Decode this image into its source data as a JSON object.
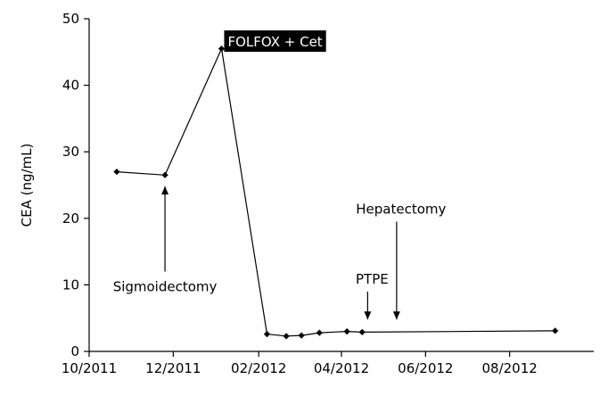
{
  "chart_data": {
    "type": "line",
    "title": "",
    "xlabel": "",
    "ylabel": "CEA (ng/mL)",
    "ylim": [
      0,
      50
    ],
    "yticks": [
      0,
      10,
      20,
      30,
      40,
      50
    ],
    "xlim": [
      "2011-10-01",
      "2012-10-01"
    ],
    "xticks": [
      {
        "date": "2011-10-01",
        "label": "10/2011"
      },
      {
        "date": "2011-12-01",
        "label": "12/2011"
      },
      {
        "date": "2012-02-01",
        "label": "02/2012"
      },
      {
        "date": "2012-04-01",
        "label": "04/2012"
      },
      {
        "date": "2012-06-01",
        "label": "06/2012"
      },
      {
        "date": "2012-08-01",
        "label": "08/2012"
      }
    ],
    "grid": false,
    "series": [
      {
        "marker": "diamond",
        "color": "#000000",
        "points": [
          {
            "x": "2011-10-21",
            "y": 27.0
          },
          {
            "x": "2011-11-25",
            "y": 26.5
          },
          {
            "x": "2012-01-05",
            "y": 45.5
          },
          {
            "x": "2012-02-07",
            "y": 2.6
          },
          {
            "x": "2012-02-21",
            "y": 2.3
          },
          {
            "x": "2012-03-03",
            "y": 2.4
          },
          {
            "x": "2012-03-16",
            "y": 2.8
          },
          {
            "x": "2012-04-05",
            "y": 3.0
          },
          {
            "x": "2012-04-16",
            "y": 2.9
          },
          {
            "x": "2012-09-03",
            "y": 3.1
          }
        ]
      }
    ],
    "annotations": [
      {
        "text": "Sigmoidectomy",
        "arrow_date": "2011-11-25",
        "arrow_from_y": 12.0,
        "arrow_to_y": 24.8,
        "direction": "up",
        "boxed": false
      },
      {
        "text": "FOLFOX + Cet",
        "at_date": "2012-01-05",
        "y": 46.5,
        "boxed": true
      },
      {
        "text": "PTPE",
        "arrow_date": "2012-04-20",
        "arrow_from_y": 9.0,
        "arrow_to_y": 4.8,
        "direction": "down",
        "boxed": false
      },
      {
        "text": "Hepatectomy",
        "arrow_date": "2012-05-11",
        "arrow_from_y": 19.5,
        "arrow_to_y": 4.8,
        "direction": "down",
        "boxed": false
      }
    ]
  }
}
